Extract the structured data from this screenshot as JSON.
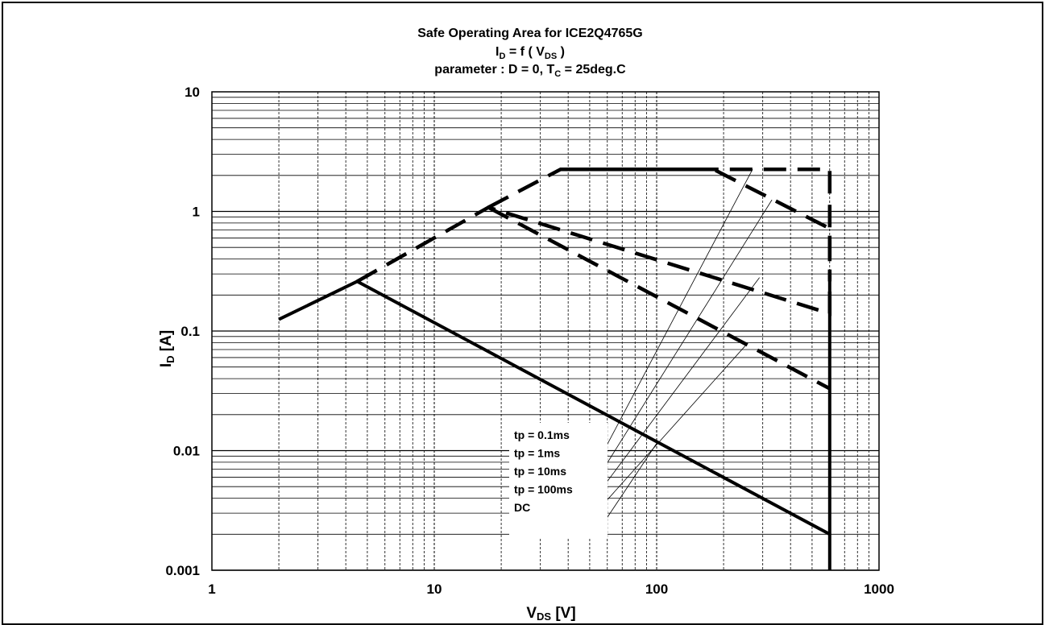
{
  "chart_data": {
    "type": "line",
    "title": {
      "line1": "Safe Operating Area for ICE2Q4765G",
      "line2": {
        "main": "I",
        "sub": "D",
        "rest": " = f ( V",
        "sub2": "DS",
        "end": " )"
      },
      "line3": {
        "main": "parameter : D = 0, T",
        "sub": "C",
        "rest": " = 25deg.C"
      }
    },
    "xlabel": {
      "main": "V",
      "sub": "DS",
      "rest": " [V]"
    },
    "ylabel": {
      "main": "I",
      "sub": "D",
      "rest": " [A]"
    },
    "x_scale": "log",
    "y_scale": "log",
    "xlim": [
      1,
      1000
    ],
    "ylim": [
      0.001,
      10
    ],
    "x_ticks": [
      {
        "value": 1,
        "label": "1"
      },
      {
        "value": 10,
        "label": "10"
      },
      {
        "value": 100,
        "label": "100"
      },
      {
        "value": 1000,
        "label": "1000"
      }
    ],
    "y_ticks": [
      {
        "value": 10,
        "label": "10"
      },
      {
        "value": 1,
        "label": "1"
      },
      {
        "value": 0.1,
        "label": "0.1"
      },
      {
        "value": 0.01,
        "label": "0.01"
      },
      {
        "value": 0.001,
        "label": "0.001"
      }
    ],
    "grid": true,
    "series": [
      {
        "name": "tp = 0.1ms",
        "style": "dashed",
        "points": [
          [
            37,
            2.25
          ],
          [
            600,
            2.25
          ],
          [
            600,
            0.27
          ]
        ]
      },
      {
        "name": "tp = 1ms",
        "style": "dashed",
        "points": [
          [
            17.5,
            1.08
          ],
          [
            37,
            2.25
          ],
          [
            180,
            2.25
          ],
          [
            600,
            0.72
          ],
          [
            600,
            0.26
          ]
        ]
      },
      {
        "name": "tp = 10ms",
        "style": "dashed",
        "points": [
          [
            4.5,
            0.26
          ],
          [
            17.5,
            1.08
          ],
          [
            600,
            0.14
          ],
          [
            600,
            0.26
          ]
        ]
      },
      {
        "name": "tp = 100ms",
        "style": "dashed",
        "points": [
          [
            17.5,
            1.08
          ],
          [
            600,
            0.033
          ]
        ]
      },
      {
        "name": "DC",
        "style": "solid",
        "points": [
          [
            2,
            0.125
          ],
          [
            4.5,
            0.26
          ],
          [
            600,
            0.002
          ],
          [
            600,
            0.27
          ],
          [
            600,
            0.001
          ]
        ]
      }
    ],
    "annotations": [
      {
        "text": "tp = 0.1ms",
        "target": [
          270,
          2.25
        ]
      },
      {
        "text": "tp = 1ms",
        "target": [
          330,
          1.25
        ]
      },
      {
        "text": "tp = 10ms",
        "target": [
          290,
          0.28
        ]
      },
      {
        "text": "tp = 100ms",
        "target": [
          250,
          0.075
        ]
      },
      {
        "text": "DC",
        "target": [
          100,
          0.0115
        ]
      }
    ]
  }
}
